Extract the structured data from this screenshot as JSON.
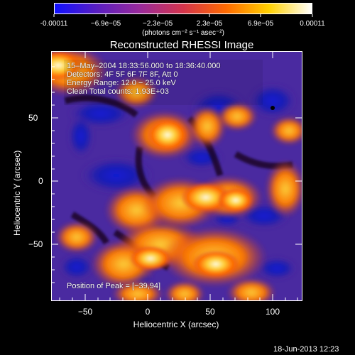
{
  "colorbar": {
    "ticks": [
      "-0.00011",
      "−6.9e−05",
      "−2.3e−05",
      "2.3e−05",
      "6.9e−05",
      "0.00011"
    ],
    "unit_label": "(photons cm⁻² s⁻¹ asec⁻²)",
    "gradient": [
      "#1010ff",
      "#5a1ec0",
      "#9a2a9a",
      "#d4344c",
      "#ff6a00",
      "#ffd000",
      "#ffffff"
    ]
  },
  "title": "Reconstructed RHESSI Image",
  "info_lines": [
    "15–May–2004 18:33:56.000 to 18:36:40.000",
    "Detectors: 4F 5F 6F 7F 8F, Att 0",
    "Energy Range: 12.0 − 25.0 keV",
    "Clean     Total counts: 1.93E+03"
  ],
  "peak_label": "Position of Peak = [−39,94]",
  "x_axis": {
    "label": "Heliocentric X (arcsec)",
    "ticks": [
      "−50",
      "0",
      "50",
      "100"
    ]
  },
  "y_axis": {
    "label": "Heliocentric Y (arcsec)",
    "ticks": [
      "50",
      "0",
      "−50"
    ]
  },
  "footer": {
    "date": "18-Jun-2013 12:23"
  },
  "image_palette": {
    "deep": "#1b1bb0",
    "mid": "#4a2aa0",
    "low": "#6a3a9a",
    "warm": "#d03a2a",
    "hot": "#ff7a00",
    "hotter": "#ffd23a",
    "peak": "#ffffe6"
  }
}
